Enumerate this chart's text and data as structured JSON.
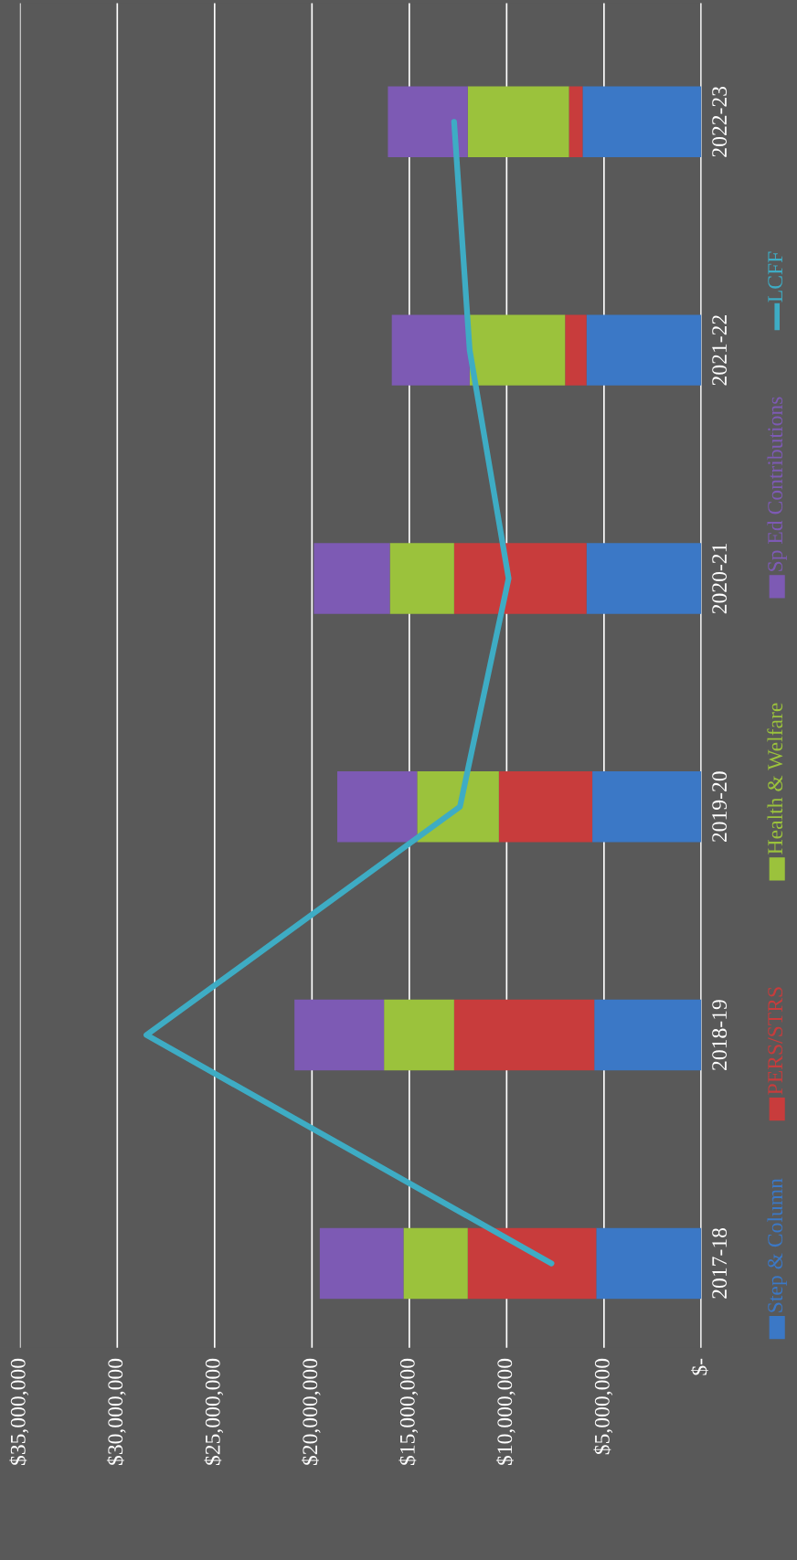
{
  "chart_data": {
    "type": "bar",
    "orientation": "horizontal",
    "stacked": true,
    "categories": [
      "2022-23",
      "2021-22",
      "2020-21",
      "2019-20",
      "2018-19",
      "2017-18"
    ],
    "series": [
      {
        "name": "Step & Column",
        "color": "#3b78c6",
        "values": [
          6100000,
          5900000,
          5900000,
          5600000,
          5500000,
          5400000
        ]
      },
      {
        "name": "PERS/STRS",
        "color": "#c83c3c",
        "values": [
          700000,
          1100000,
          6800000,
          4800000,
          7200000,
          6600000
        ]
      },
      {
        "name": "Health & Welfare",
        "color": "#9bc23c",
        "values": [
          5200000,
          4900000,
          3300000,
          4200000,
          3600000,
          3300000
        ]
      },
      {
        "name": "Sp Ed Contributions",
        "color": "#7d5ab4",
        "values": [
          4100000,
          4000000,
          3900000,
          4100000,
          4600000,
          4300000
        ]
      },
      {
        "name": "LCFF",
        "type": "line",
        "color": "#3eacc4",
        "values": [
          12700000,
          11900000,
          9900000,
          12400000,
          28500000,
          7700000
        ]
      }
    ],
    "xlim": [
      35000000,
      0
    ],
    "xticks": [
      {
        "value": 35000000,
        "label": "$35,000,000"
      },
      {
        "value": 30000000,
        "label": "$30,000,000"
      },
      {
        "value": 25000000,
        "label": "$25,000,000"
      },
      {
        "value": 20000000,
        "label": "$20,000,000"
      },
      {
        "value": 15000000,
        "label": "$15,000,000"
      },
      {
        "value": 10000000,
        "label": "$10,000,000"
      },
      {
        "value": 5000000,
        "label": "$5,000,000"
      },
      {
        "value": 0,
        "label": "$-"
      }
    ],
    "grid": "x",
    "legend": "right"
  }
}
